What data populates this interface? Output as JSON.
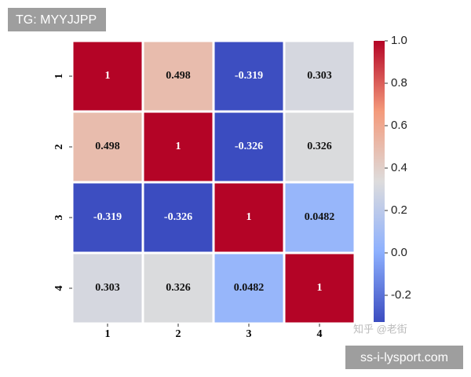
{
  "chart_data": {
    "type": "heatmap",
    "xcategories": [
      "1",
      "2",
      "3",
      "4"
    ],
    "ycategories": [
      "1",
      "2",
      "3",
      "4"
    ],
    "values": [
      [
        1,
        0.498,
        -0.319,
        0.303
      ],
      [
        0.498,
        1,
        -0.326,
        0.326
      ],
      [
        -0.319,
        -0.326,
        1,
        0.0482
      ],
      [
        0.303,
        0.326,
        0.0482,
        1
      ]
    ],
    "colormap": [
      "#3b4cc0",
      "#8db0fe",
      "#dddcdc",
      "#f49a7b",
      "#b40426"
    ],
    "clim": [
      -0.326,
      1
    ],
    "cticks": [
      -0.2,
      {
        "value": 0,
        "label": "0.0"
      },
      0.2,
      0.4,
      0.6,
      0.8,
      {
        "value": 1,
        "label": "1.0"
      }
    ]
  },
  "watermarks": {
    "top": "TG: MYYJJPP",
    "faint": "知乎 @老街",
    "bottom": "ss-i-lysport.com"
  }
}
